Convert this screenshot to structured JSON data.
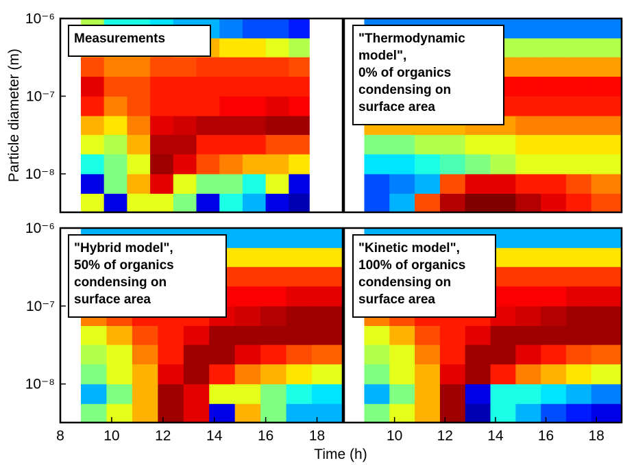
{
  "chart_data": [
    {
      "type": "heatmap",
      "annotation": [
        "Measurements"
      ],
      "ylabel": "Particle diameter (m)",
      "colormap": "jet",
      "yscale": "log",
      "xlim": [
        8,
        19
      ],
      "ylim": [
        3.2e-09,
        1e-06
      ],
      "yticks": [
        {
          "value": 1e-08,
          "label": "10⁻⁸"
        },
        {
          "value": 1e-07,
          "label": "10⁻⁷"
        },
        {
          "value": 1e-06,
          "label": "10⁻⁶"
        }
      ],
      "x_edges": [
        8.8,
        9.7,
        10.6,
        11.5,
        12.4,
        13.3,
        14.2,
        15.1,
        16.0,
        16.9,
        17.7
      ],
      "y_edges": [
        3.2e-09,
        5.6e-09,
        1e-08,
        1.8e-08,
        3.2e-08,
        5.6e-08,
        1e-07,
        1.8e-07,
        3.2e-07,
        5.6e-07,
        1e-06
      ],
      "z": [
        [
          0.6,
          0.1,
          0.6,
          0.6,
          0.5,
          0.1,
          0.4,
          0.3,
          0.1,
          0.05
        ],
        [
          0.1,
          0.5,
          0.7,
          0.9,
          0.6,
          0.5,
          0.5,
          0.4,
          0.6,
          0.1
        ],
        [
          0.4,
          0.5,
          0.6,
          0.97,
          0.9,
          0.8,
          0.75,
          0.7,
          0.7,
          0.65
        ],
        [
          0.6,
          0.55,
          0.7,
          0.95,
          0.95,
          0.85,
          0.85,
          0.85,
          0.8,
          0.8
        ],
        [
          0.7,
          0.65,
          0.75,
          0.9,
          0.92,
          0.95,
          0.95,
          0.95,
          0.97,
          0.97
        ],
        [
          0.85,
          0.75,
          0.8,
          0.85,
          0.85,
          0.85,
          0.88,
          0.88,
          0.9,
          0.88
        ],
        [
          0.9,
          0.8,
          0.8,
          0.85,
          0.85,
          0.85,
          0.85,
          0.85,
          0.85,
          0.85
        ],
        [
          0.8,
          0.75,
          0.75,
          0.8,
          0.8,
          0.82,
          0.82,
          0.82,
          0.82,
          0.8
        ],
        [
          0.7,
          0.7,
          0.7,
          0.75,
          0.7,
          0.7,
          0.65,
          0.65,
          0.6,
          0.55
        ],
        [
          0.55,
          0.4,
          0.4,
          0.35,
          0.3,
          0.3,
          0.25,
          0.2,
          0.2,
          0.15
        ]
      ]
    },
    {
      "type": "heatmap",
      "annotation": [
        "\"Thermodynamic",
        " model\",",
        "0% of organics",
        "condensing on",
        "surface area"
      ],
      "colormap": "jet",
      "yscale": "log",
      "xlim": [
        8,
        19
      ],
      "ylim": [
        3.2e-09,
        1e-06
      ],
      "x_edges": [
        8.8,
        9.8,
        10.8,
        11.8,
        12.8,
        13.8,
        14.8,
        15.8,
        16.8,
        17.8,
        19
      ],
      "y_edges": [
        3.2e-09,
        5.6e-09,
        1e-08,
        1.8e-08,
        3.2e-08,
        5.6e-08,
        1e-07,
        1.8e-07,
        3.2e-07,
        5.6e-07,
        1e-06
      ],
      "z": [
        [
          0.2,
          0.3,
          0.8,
          0.95,
          1,
          1,
          0.95,
          0.9,
          0.85,
          0.8
        ],
        [
          0.2,
          0.25,
          0.3,
          0.8,
          0.9,
          0.9,
          0.85,
          0.85,
          0.8,
          0.75
        ],
        [
          0.35,
          0.35,
          0.4,
          0.45,
          0.5,
          0.55,
          0.6,
          0.6,
          0.6,
          0.6
        ],
        [
          0.5,
          0.5,
          0.55,
          0.55,
          0.6,
          0.6,
          0.65,
          0.65,
          0.65,
          0.65
        ],
        [
          0.7,
          0.7,
          0.7,
          0.7,
          0.72,
          0.72,
          0.75,
          0.75,
          0.75,
          0.75
        ],
        [
          0.85,
          0.85,
          0.85,
          0.85,
          0.85,
          0.85,
          0.85,
          0.85,
          0.85,
          0.85
        ],
        [
          0.87,
          0.87,
          0.87,
          0.87,
          0.87,
          0.87,
          0.87,
          0.87,
          0.87,
          0.87
        ],
        [
          0.72,
          0.72,
          0.72,
          0.72,
          0.72,
          0.72,
          0.72,
          0.72,
          0.72,
          0.72
        ],
        [
          0.55,
          0.55,
          0.55,
          0.55,
          0.55,
          0.55,
          0.55,
          0.55,
          0.55,
          0.55
        ],
        [
          0.25,
          0.25,
          0.25,
          0.25,
          0.25,
          0.25,
          0.25,
          0.25,
          0.25,
          0.25
        ]
      ]
    },
    {
      "type": "heatmap",
      "annotation": [
        "\"Hybrid model\",",
        "50% of organics",
        "condensing on",
        "surface area"
      ],
      "xlabel": "Time (h)",
      "colormap": "jet",
      "yscale": "log",
      "xlim": [
        8,
        19
      ],
      "ylim": [
        3.2e-09,
        1e-06
      ],
      "xticks": [
        8,
        10,
        12,
        14,
        16,
        18
      ],
      "yticks": [
        {
          "value": 1e-08,
          "label": "10⁻⁸"
        },
        {
          "value": 1e-07,
          "label": "10⁻⁷"
        },
        {
          "value": 1e-06,
          "label": "10⁻⁶"
        }
      ],
      "x_edges": [
        8.8,
        9.8,
        10.8,
        11.8,
        12.8,
        13.8,
        14.8,
        15.8,
        16.8,
        17.8,
        19
      ],
      "y_edges": [
        3.2e-09,
        5.6e-09,
        1e-08,
        1.8e-08,
        3.2e-08,
        5.6e-08,
        1e-07,
        1.8e-07,
        3.2e-07,
        5.6e-07,
        1e-06
      ],
      "z": [
        [
          0.5,
          0.6,
          0.7,
          0.97,
          0.9,
          0.1,
          0.7,
          0.5,
          0.3,
          0.3
        ],
        [
          0.3,
          0.5,
          0.7,
          0.97,
          0.9,
          0.6,
          0.6,
          0.5,
          0.4,
          0.35
        ],
        [
          0.5,
          0.6,
          0.7,
          0.9,
          0.97,
          0.85,
          0.75,
          0.7,
          0.65,
          0.6
        ],
        [
          0.55,
          0.6,
          0.75,
          0.85,
          0.97,
          0.97,
          0.9,
          0.85,
          0.8,
          0.78
        ],
        [
          0.6,
          0.7,
          0.8,
          0.85,
          0.9,
          0.97,
          0.97,
          0.97,
          0.97,
          0.97
        ],
        [
          0.75,
          0.8,
          0.85,
          0.85,
          0.85,
          0.9,
          0.92,
          0.95,
          0.97,
          0.97
        ],
        [
          0.85,
          0.88,
          0.88,
          0.88,
          0.88,
          0.88,
          0.88,
          0.88,
          0.9,
          0.9
        ],
        [
          0.78,
          0.8,
          0.8,
          0.8,
          0.8,
          0.82,
          0.82,
          0.82,
          0.82,
          0.82
        ],
        [
          0.6,
          0.6,
          0.62,
          0.62,
          0.62,
          0.65,
          0.65,
          0.65,
          0.65,
          0.65
        ],
        [
          0.3,
          0.3,
          0.3,
          0.3,
          0.3,
          0.3,
          0.3,
          0.3,
          0.3,
          0.3
        ]
      ]
    },
    {
      "type": "heatmap",
      "annotation": [
        "\"Kinetic model\",",
        "100% of organics",
        "condensing on",
        "surface area"
      ],
      "colormap": "jet",
      "yscale": "log",
      "xlim": [
        8,
        19
      ],
      "ylim": [
        3.2e-09,
        1e-06
      ],
      "xticks": [
        10,
        12,
        14,
        16,
        18
      ],
      "x_edges": [
        8.8,
        9.8,
        10.8,
        11.8,
        12.8,
        13.8,
        14.8,
        15.8,
        16.8,
        17.8,
        19
      ],
      "y_edges": [
        3.2e-09,
        5.6e-09,
        1e-08,
        1.8e-08,
        3.2e-08,
        5.6e-08,
        1e-07,
        1.8e-07,
        3.2e-07,
        5.6e-07,
        1e-06
      ],
      "z": [
        [
          0.5,
          0.6,
          0.7,
          0.97,
          0.05,
          0.4,
          0.3,
          0.2,
          0.15,
          0.1
        ],
        [
          0.3,
          0.5,
          0.7,
          0.97,
          0.1,
          0.4,
          0.4,
          0.35,
          0.3,
          0.25
        ],
        [
          0.5,
          0.6,
          0.7,
          0.9,
          0.97,
          0.85,
          0.75,
          0.7,
          0.65,
          0.6
        ],
        [
          0.55,
          0.6,
          0.75,
          0.85,
          0.97,
          0.97,
          0.9,
          0.85,
          0.8,
          0.78
        ],
        [
          0.6,
          0.7,
          0.8,
          0.85,
          0.9,
          0.97,
          0.97,
          0.97,
          0.97,
          0.97
        ],
        [
          0.75,
          0.8,
          0.85,
          0.85,
          0.85,
          0.9,
          0.92,
          0.95,
          0.97,
          0.97
        ],
        [
          0.85,
          0.88,
          0.88,
          0.88,
          0.88,
          0.88,
          0.88,
          0.88,
          0.9,
          0.9
        ],
        [
          0.78,
          0.8,
          0.8,
          0.8,
          0.8,
          0.82,
          0.82,
          0.82,
          0.82,
          0.82
        ],
        [
          0.6,
          0.6,
          0.62,
          0.62,
          0.62,
          0.65,
          0.65,
          0.65,
          0.65,
          0.65
        ],
        [
          0.3,
          0.3,
          0.3,
          0.3,
          0.3,
          0.3,
          0.3,
          0.3,
          0.3,
          0.3
        ]
      ]
    }
  ]
}
